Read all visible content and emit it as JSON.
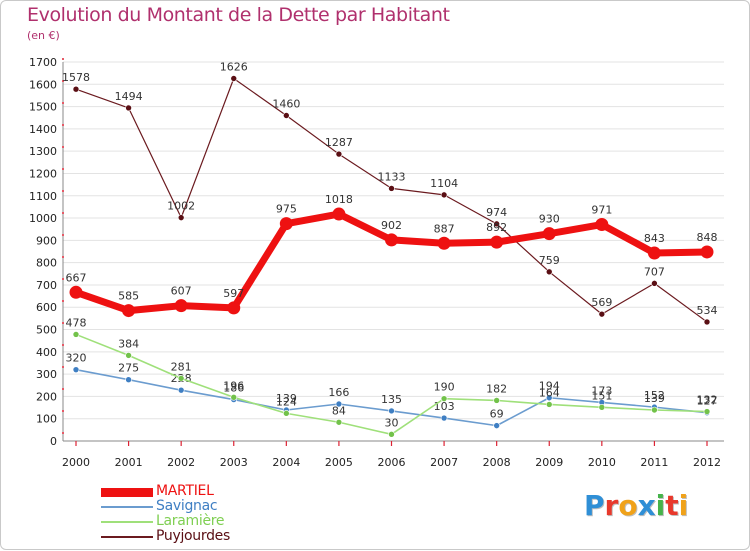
{
  "title": "Evolution du Montant de la Dette par Habitant",
  "subtitle": "(en €)",
  "brand": {
    "text": "Proxiti",
    "letters": [
      {
        "ch": "P",
        "color": "#2f8fd6"
      },
      {
        "ch": "r",
        "color": "#e8392c"
      },
      {
        "ch": "o",
        "color": "#f0a21a"
      },
      {
        "ch": "x",
        "color": "#2f8fd6"
      },
      {
        "ch": "i",
        "color": "#46b34a"
      },
      {
        "ch": "t",
        "color": "#e8392c"
      },
      {
        "ch": "i",
        "color": "#f0a21a"
      }
    ]
  },
  "chart_data": {
    "type": "line",
    "x": [
      "2000",
      "2001",
      "2002",
      "2003",
      "2004",
      "2005",
      "2006",
      "2007",
      "2008",
      "2009",
      "2010",
      "2011",
      "2012"
    ],
    "ylim": [
      0,
      1700
    ],
    "yticks": [
      0,
      100,
      200,
      300,
      400,
      500,
      600,
      700,
      800,
      900,
      1000,
      1100,
      1200,
      1300,
      1400,
      1500,
      1600,
      1700
    ],
    "grid": true,
    "legend_position": "bottom-left",
    "series": [
      {
        "name": "Puyjourdes",
        "color": "#6b1a1f",
        "marker": "#5a0f14",
        "width": 1.2,
        "r": 3,
        "values": [
          1578,
          1494,
          1002,
          1626,
          1460,
          1287,
          1133,
          1104,
          974,
          759,
          569,
          707,
          534
        ]
      },
      {
        "name": "Savignac",
        "color": "#6b9ccf",
        "marker": "#3f7fc3",
        "width": 1.6,
        "r": 3,
        "values": [
          320,
          275,
          228,
          186,
          139,
          166,
          135,
          103,
          69,
          194,
          173,
          152,
          127
        ]
      },
      {
        "name": "Laramière",
        "color": "#9fe07a",
        "marker": "#72c24a",
        "width": 1.6,
        "r": 3,
        "values": [
          478,
          384,
          281,
          196,
          124,
          84,
          30,
          190,
          182,
          164,
          151,
          139,
          132
        ]
      },
      {
        "name": "MARTIEL",
        "color": "#ee1111",
        "marker": "#ee1111",
        "width": 7,
        "r": 6.5,
        "values": [
          667,
          585,
          607,
          597,
          975,
          1018,
          902,
          887,
          892,
          930,
          971,
          843,
          848
        ]
      }
    ],
    "legend_order": [
      "MARTIEL",
      "Savignac",
      "Laramière",
      "Puyjourdes"
    ]
  }
}
